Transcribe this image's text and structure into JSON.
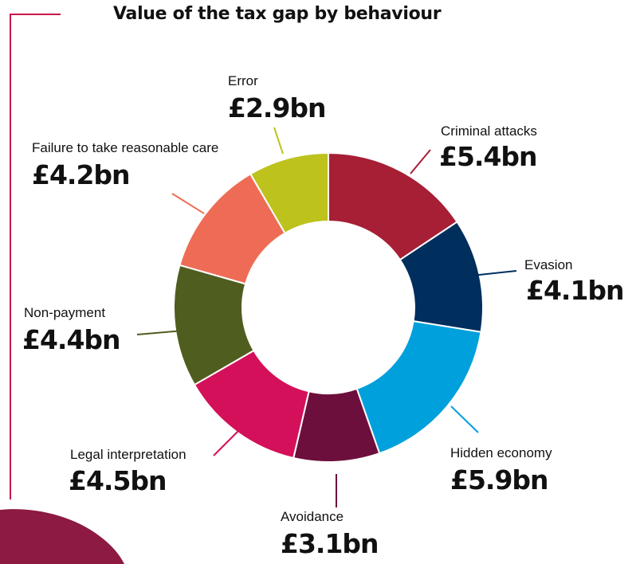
{
  "colors": {
    "frame": "#c8174a",
    "background_brush": "#8c1a42"
  },
  "chart_data": {
    "type": "pie",
    "donut": true,
    "title": "Value of the tax gap by behaviour",
    "unit": "£bn",
    "slices": [
      {
        "label": "Criminal attacks",
        "value": 5.4,
        "value_label": "£5.4bn",
        "color": "#a61f35"
      },
      {
        "label": "Evasion",
        "value": 4.1,
        "value_label": "£4.1bn",
        "color": "#002e5d"
      },
      {
        "label": "Hidden economy",
        "value": 5.9,
        "value_label": "£5.9bn",
        "color": "#00a0dc"
      },
      {
        "label": "Avoidance",
        "value": 3.1,
        "value_label": "£3.1bn",
        "color": "#6d0f3c"
      },
      {
        "label": "Legal interpretation",
        "value": 4.5,
        "value_label": "£4.5bn",
        "color": "#d4105a"
      },
      {
        "label": "Non-payment",
        "value": 4.4,
        "value_label": "£4.4bn",
        "color": "#4f5d1f"
      },
      {
        "label": "Failure to take reasonable care",
        "value": 4.2,
        "value_label": "£4.2bn",
        "color": "#ee6c55"
      },
      {
        "label": "Error",
        "value": 2.9,
        "value_label": "£2.9bn",
        "color": "#bdc21d"
      }
    ]
  }
}
